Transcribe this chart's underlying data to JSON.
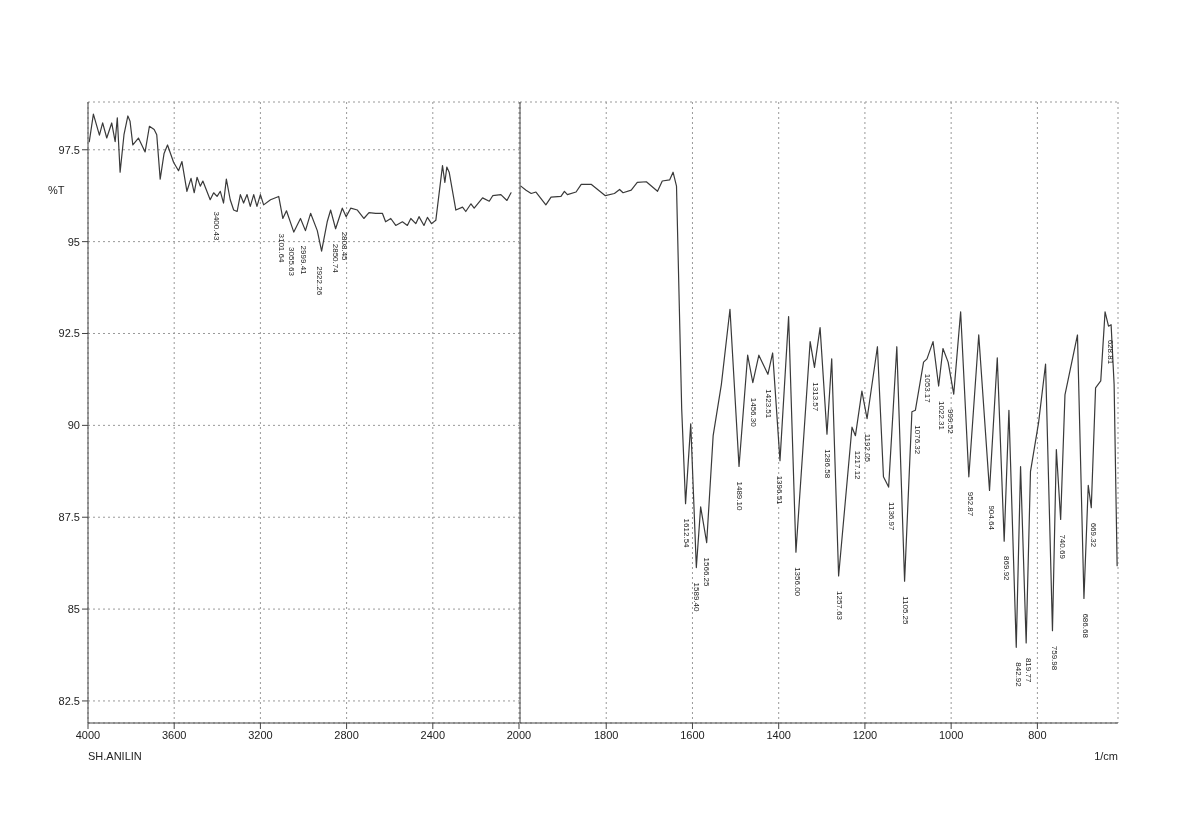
{
  "chart_data": [
    {
      "type": "line",
      "ylabel": "%T",
      "x": [
        3994,
        3975,
        3947,
        3932,
        3913,
        3890,
        3874,
        3864,
        3851,
        3833,
        3815,
        3805,
        3792,
        3766,
        3735,
        3715,
        3693,
        3681,
        3665,
        3647,
        3631,
        3603,
        3580,
        3564,
        3541,
        3522,
        3507,
        3494,
        3479,
        3467,
        3433,
        3417,
        3401,
        3386,
        3371,
        3358,
        3340,
        3324,
        3308,
        3293,
        3278,
        3262,
        3247,
        3231,
        3216,
        3200,
        3185,
        3153,
        3115,
        3096,
        3079,
        3045,
        3014,
        2991,
        2967,
        2936,
        2916,
        2890,
        2874,
        2851,
        2820,
        2802,
        2781,
        2750,
        2720,
        2696,
        2665,
        2634,
        2619,
        2595,
        2572,
        2541,
        2518,
        2502,
        2479,
        2464,
        2441,
        2425,
        2406,
        2386,
        2355,
        2344,
        2335,
        2324,
        2293,
        2262,
        2247,
        2223,
        2208,
        2169,
        2138,
        2122,
        2084,
        2056,
        2037
      ],
      "series": [
        {
          "color": "#3a3a3a",
          "values": [
            97.72,
            98.47,
            97.9,
            98.23,
            97.82,
            98.23,
            97.72,
            98.37,
            96.89,
            97.91,
            98.42,
            98.28,
            97.63,
            97.82,
            97.44,
            98.14,
            98.05,
            97.91,
            96.7,
            97.4,
            97.63,
            97.16,
            96.93,
            97.18,
            96.37,
            96.72,
            96.33,
            96.75,
            96.51,
            96.65,
            96.14,
            96.33,
            96.23,
            96.37,
            96.05,
            96.7,
            96.14,
            95.86,
            95.82,
            96.28,
            96.05,
            96.28,
            95.96,
            96.28,
            95.96,
            96.28,
            96.0,
            96.14,
            96.23,
            95.63,
            95.84,
            95.26,
            95.63,
            95.3,
            95.77,
            95.3,
            94.74,
            95.54,
            95.86,
            95.35,
            95.91,
            95.68,
            95.91,
            95.86,
            95.63,
            95.79,
            95.77,
            95.77,
            95.54,
            95.63,
            95.44,
            95.54,
            95.44,
            95.63,
            95.49,
            95.68,
            95.44,
            95.66,
            95.49,
            95.58,
            97.07,
            96.61,
            97.03,
            96.89,
            95.86,
            95.94,
            95.82,
            96.03,
            95.91,
            96.19,
            96.1,
            96.25,
            96.28,
            96.12,
            96.33
          ]
        }
      ],
      "xlim": [
        4000,
        2000
      ],
      "xticks": [
        4000,
        3600,
        3200,
        2800,
        2400,
        2000
      ],
      "ylim": [
        81.9,
        98.8
      ],
      "yticks": [
        82.5,
        85,
        87.5,
        90,
        92.5,
        95,
        97.5
      ],
      "grid": true,
      "marker": "none",
      "line_style": "solid",
      "annotations": [
        "SH.ANILIN",
        {
          "text": "3400.43",
          "x": 3400.43,
          "y": 96.23
        },
        {
          "text": "3101.64",
          "x": 3101.64,
          "y": 95.63
        },
        {
          "text": "3055.63",
          "x": 3055.63,
          "y": 95.26
        },
        {
          "text": "2999.41",
          "x": 2999.41,
          "y": 95.3
        },
        {
          "text": "2922.26",
          "x": 2922.26,
          "y": 94.74
        },
        {
          "text": "2850.74",
          "x": 2850.74,
          "y": 95.35
        },
        {
          "text": "2808.45",
          "x": 2808.45,
          "y": 95.68
        }
      ]
    },
    {
      "type": "line",
      "xlabel": "1/cm",
      "tick_labels": "x",
      "x": [
        1998,
        1986,
        1974,
        1963,
        1940,
        1928,
        1905,
        1897,
        1890,
        1870,
        1858,
        1835,
        1802,
        1781,
        1769,
        1761,
        1742,
        1728,
        1707,
        1681,
        1670,
        1653,
        1645,
        1637,
        1625,
        1616,
        1604,
        1591,
        1581,
        1567,
        1552,
        1533,
        1513,
        1492,
        1472,
        1460,
        1446,
        1425,
        1414,
        1397,
        1377,
        1360,
        1327,
        1317,
        1304,
        1288,
        1277,
        1261,
        1246,
        1230,
        1222,
        1207,
        1195,
        1171,
        1157,
        1145,
        1126,
        1108,
        1091,
        1083,
        1064,
        1056,
        1042,
        1029,
        1019,
        1007,
        994,
        978,
        959,
        936,
        911,
        893,
        877,
        866,
        849,
        839,
        826,
        816,
        797,
        781,
        765,
        756,
        746,
        736,
        707,
        692,
        682,
        675,
        665,
        653,
        643,
        635,
        629,
        622,
        615
      ],
      "series": [
        {
          "color": "#3a3a3a",
          "values": [
            96.51,
            96.4,
            96.31,
            96.35,
            96.0,
            96.21,
            96.23,
            96.37,
            96.28,
            96.35,
            96.56,
            96.56,
            96.25,
            96.31,
            96.42,
            96.33,
            96.4,
            96.61,
            96.63,
            96.37,
            96.65,
            96.68,
            96.89,
            96.51,
            90.46,
            87.87,
            90.04,
            86.13,
            87.78,
            86.81,
            89.72,
            91.11,
            93.16,
            88.88,
            91.91,
            91.16,
            91.91,
            91.39,
            91.97,
            89.04,
            92.96,
            86.55,
            92.28,
            91.58,
            92.66,
            89.76,
            91.81,
            85.9,
            87.86,
            89.95,
            89.72,
            90.93,
            90.18,
            92.14,
            88.6,
            88.32,
            92.14,
            85.76,
            90.37,
            90.41,
            91.72,
            91.81,
            92.28,
            91.07,
            92.09,
            91.72,
            90.85,
            93.09,
            88.6,
            92.46,
            88.23,
            91.84,
            86.85,
            90.41,
            83.96,
            88.88,
            84.08,
            88.74,
            90.09,
            91.67,
            84.41,
            89.34,
            87.44,
            90.83,
            92.46,
            85.29,
            88.37,
            87.76,
            91.02,
            91.21,
            93.09,
            92.7,
            92.74,
            91.11,
            86.18
          ]
        }
      ],
      "xlim": [
        2000,
        613
      ],
      "xticks": [
        1800,
        1600,
        1400,
        1200,
        1000,
        800
      ],
      "ylim": [
        81.9,
        98.8
      ],
      "yticks": [
        82.5,
        85,
        87.5,
        90,
        92.5,
        95,
        97.5
      ],
      "grid": true,
      "marker": "none",
      "line_style": "solid",
      "annotations": [
        {
          "text": "1612.54",
          "x": 1612.54,
          "y": 87.87
        },
        {
          "text": "1589.40",
          "x": 1589.4,
          "y": 86.13
        },
        {
          "text": "1566.25",
          "x": 1566.25,
          "y": 86.81
        },
        {
          "text": "1489.10",
          "x": 1489.1,
          "y": 88.88
        },
        {
          "text": "1456.30",
          "x": 1456.3,
          "y": 91.16
        },
        {
          "text": "1423.51",
          "x": 1423.51,
          "y": 91.39
        },
        {
          "text": "1396.51",
          "x": 1396.51,
          "y": 89.04
        },
        {
          "text": "1356.00",
          "x": 1356.0,
          "y": 86.55
        },
        {
          "text": "1313.57",
          "x": 1313.57,
          "y": 91.58
        },
        {
          "text": "1286.58",
          "x": 1286.58,
          "y": 89.76
        },
        {
          "text": "1257.63",
          "x": 1257.63,
          "y": 85.9
        },
        {
          "text": "1217.12",
          "x": 1217.12,
          "y": 89.72
        },
        {
          "text": "1192.05",
          "x": 1192.05,
          "y": 90.18
        },
        {
          "text": "1136.97",
          "x": 1136.97,
          "y": 88.32
        },
        {
          "text": "1105.25",
          "x": 1105.25,
          "y": 85.76
        },
        {
          "text": "1076.32",
          "x": 1076.32,
          "y": 90.41
        },
        {
          "text": "1053.17",
          "x": 1053.17,
          "y": 91.81
        },
        {
          "text": "1022.31",
          "x": 1022.31,
          "y": 91.07
        },
        {
          "text": "999.52",
          "x": 999.52,
          "y": 90.85
        },
        {
          "text": "952.87",
          "x": 952.87,
          "y": 88.6
        },
        {
          "text": "904.64",
          "x": 904.64,
          "y": 88.23
        },
        {
          "text": "869.92",
          "x": 869.92,
          "y": 86.85
        },
        {
          "text": "842.92",
          "x": 842.92,
          "y": 83.96
        },
        {
          "text": "819.77",
          "x": 819.77,
          "y": 84.08
        },
        {
          "text": "759.98",
          "x": 759.98,
          "y": 84.41
        },
        {
          "text": "740.69",
          "x": 740.69,
          "y": 87.44
        },
        {
          "text": "686.68",
          "x": 686.68,
          "y": 85.29
        },
        {
          "text": "669.32",
          "x": 669.32,
          "y": 87.76
        },
        {
          "text": "628.81",
          "x": 628.81,
          "y": 92.74
        }
      ]
    }
  ]
}
